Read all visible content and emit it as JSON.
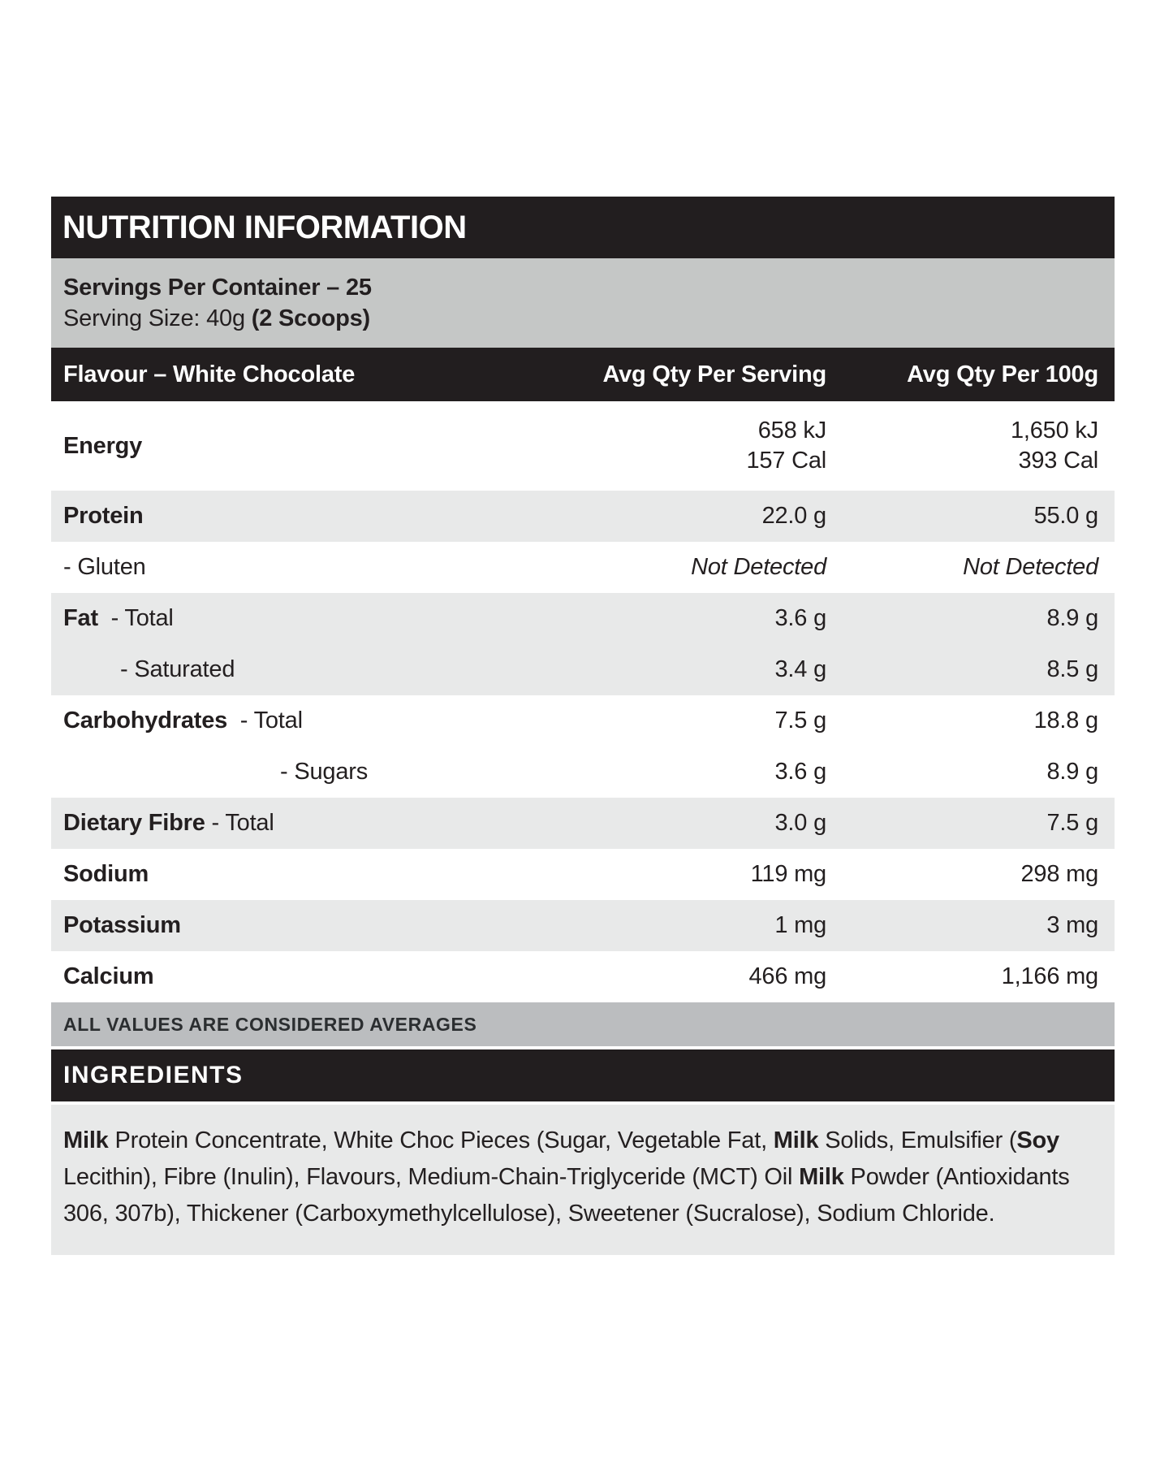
{
  "label": {
    "title": "NUTRITION INFORMATION",
    "servings_per_container": "Servings Per Container – 25",
    "serving_size_prefix": "Serving Size: 40g ",
    "serving_size_bold": "(2 Scoops)",
    "columns": [
      "Flavour – White Chocolate",
      "Avg Qty Per Serving",
      "Avg Qty Per 100g"
    ],
    "rows": [
      {
        "id": "energy",
        "label": [
          {
            "t": "Energy",
            "b": true
          }
        ],
        "per_serving": [
          "658 kJ",
          "157 Cal"
        ],
        "per_100g": [
          "1,650 kJ",
          "393 Cal"
        ],
        "shade": "white",
        "size": "tall"
      },
      {
        "id": "protein",
        "label": [
          {
            "t": "Protein",
            "b": true
          }
        ],
        "per_serving": [
          "22.0 g"
        ],
        "per_100g": [
          "55.0 g"
        ],
        "shade": "gray"
      },
      {
        "id": "gluten",
        "label": [
          {
            "t": "- Gluten",
            "b": false
          }
        ],
        "per_serving": [
          "Not Detected"
        ],
        "per_100g": [
          "Not Detected"
        ],
        "italic": true,
        "shade": "white"
      },
      {
        "id": "fat-total",
        "label": [
          {
            "t": "Fat",
            "b": true
          },
          {
            "t": "  - Total",
            "b": false
          }
        ],
        "per_serving": [
          "3.6 g"
        ],
        "per_100g": [
          "8.9 g"
        ],
        "shade": "gray"
      },
      {
        "id": "fat-saturated",
        "label": [
          {
            "t": "- Saturated",
            "b": false
          }
        ],
        "indent": 1,
        "per_serving": [
          "3.4 g"
        ],
        "per_100g": [
          "8.5 g"
        ],
        "shade": "gray"
      },
      {
        "id": "carbohydrates-total",
        "label": [
          {
            "t": "Carbohydrates",
            "b": true
          },
          {
            "t": "  - Total",
            "b": false
          }
        ],
        "per_serving": [
          "7.5 g"
        ],
        "per_100g": [
          "18.8 g"
        ],
        "shade": "white"
      },
      {
        "id": "carbohydrates-sugars",
        "label": [
          {
            "t": "- Sugars",
            "b": false
          }
        ],
        "indent": 2,
        "per_serving": [
          "3.6 g"
        ],
        "per_100g": [
          "8.9 g"
        ],
        "shade": "white"
      },
      {
        "id": "dietary-fibre-total",
        "label": [
          {
            "t": "Dietary Fibre",
            "b": true
          },
          {
            "t": " - Total",
            "b": false
          }
        ],
        "per_serving": [
          "3.0 g"
        ],
        "per_100g": [
          "7.5 g"
        ],
        "shade": "gray"
      },
      {
        "id": "sodium",
        "label": [
          {
            "t": "Sodium",
            "b": true
          }
        ],
        "per_serving": [
          "119 mg"
        ],
        "per_100g": [
          "298 mg"
        ],
        "shade": "white"
      },
      {
        "id": "potassium",
        "label": [
          {
            "t": "Potassium",
            "b": true
          }
        ],
        "per_serving": [
          "1 mg"
        ],
        "per_100g": [
          "3 mg"
        ],
        "shade": "gray"
      },
      {
        "id": "calcium",
        "label": [
          {
            "t": "Calcium",
            "b": true
          }
        ],
        "per_serving": [
          "466 mg"
        ],
        "per_100g": [
          "1,166 mg"
        ],
        "shade": "white"
      }
    ],
    "footnote": "ALL VALUES ARE CONSIDERED AVERAGES",
    "ingredients_title": "INGREDIENTS",
    "ingredients": [
      {
        "t": "Milk",
        "b": true
      },
      {
        "t": " Protein Concentrate, White Choc Pieces (Sugar, Vegetable Fat, ",
        "b": false
      },
      {
        "t": "Milk",
        "b": true
      },
      {
        "t": " Solids, Emulsifier (",
        "b": false
      },
      {
        "t": "Soy",
        "b": true
      },
      {
        "t": " Lecithin), Fibre (Inulin), Flavours, Medium-Chain-Triglyceride (MCT) Oil ",
        "b": false
      },
      {
        "t": "Milk",
        "b": true
      },
      {
        "t": " Powder (Antioxidants 306, 307b), Thickener (Carboxymethylcellulose), Sweetener (Sucralose), Sodium Chloride.",
        "b": false
      }
    ],
    "colors": {
      "bar_black": "#221e1f",
      "servings_gray": "#c5c7c6",
      "row_gray": "#e8e9e9",
      "footnote_gray": "#bbbdbf",
      "text": "#231f20"
    }
  }
}
